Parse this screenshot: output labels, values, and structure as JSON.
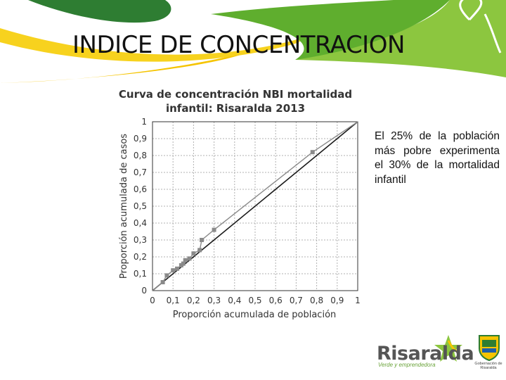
{
  "slide": {
    "title": "INDICE DE CONCENTRACION",
    "note": "El 25% de la población más pobre experimenta el 30% de la mortalidad infantil"
  },
  "logo": {
    "name": "Risaralda",
    "tagline": "Verde y emprendedora",
    "gov_label": "Gobernación de Risaralda"
  },
  "colors": {
    "green_dark": "#2e7d32",
    "green_light": "#8cc63f",
    "yellow": "#f5c400"
  },
  "chart_data": {
    "type": "line",
    "title": "Curva de concentración NBI mortalidad infantil: Risaralda 2013",
    "xlabel": "Proporción acumulada de población",
    "ylabel": "Proporción acumulada de casos",
    "xlim": [
      0,
      1
    ],
    "ylim": [
      0,
      1
    ],
    "xticks": [
      "0",
      "0,1",
      "0,2",
      "0,3",
      "0,4",
      "0,5",
      "0,6",
      "0,7",
      "0,8",
      "0,9",
      "1"
    ],
    "yticks": [
      "0",
      "0,1",
      "0,2",
      "0,3",
      "0,4",
      "0,5",
      "0,6",
      "0,7",
      "0,8",
      "0,9",
      "1"
    ],
    "grid": true,
    "series": [
      {
        "role": "equality",
        "x": [
          0,
          1
        ],
        "y": [
          0,
          1
        ]
      },
      {
        "role": "concentration",
        "x": [
          0,
          0.05,
          0.07,
          0.1,
          0.12,
          0.14,
          0.15,
          0.16,
          0.18,
          0.2,
          0.23,
          0.24,
          0.3,
          0.78,
          1
        ],
        "y": [
          0,
          0.05,
          0.09,
          0.12,
          0.13,
          0.15,
          0.16,
          0.18,
          0.19,
          0.22,
          0.24,
          0.3,
          0.36,
          0.82,
          1
        ]
      }
    ]
  }
}
